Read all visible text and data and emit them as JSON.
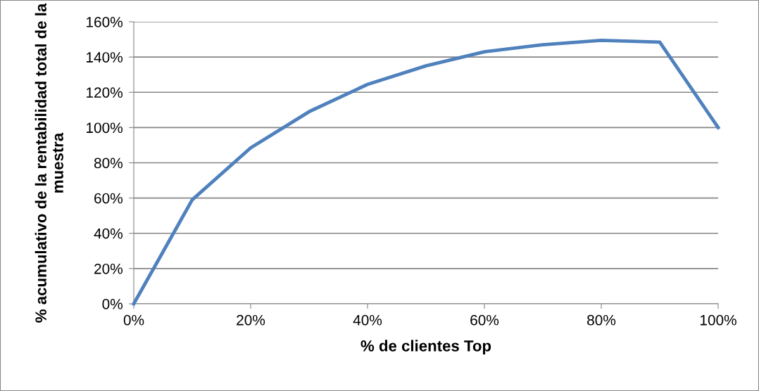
{
  "chart_data": {
    "type": "line",
    "xlabel": "% de clientes Top",
    "ylabel": "% acumulativo de la rentabilidad total de la muestra",
    "x": [
      0,
      10,
      20,
      30,
      40,
      50,
      60,
      70,
      80,
      90,
      100
    ],
    "series": [
      {
        "color": "#4f81bd",
        "values": [
          0,
          59,
          88.5,
          109,
          124.5,
          135,
          143,
          147,
          149.5,
          148.5,
          100
        ]
      }
    ],
    "xlim": [
      0,
      100
    ],
    "xticks": [
      {
        "value": 0,
        "label": "0%"
      },
      {
        "value": 20,
        "label": "20%"
      },
      {
        "value": 40,
        "label": "40%"
      },
      {
        "value": 60,
        "label": "60%"
      },
      {
        "value": 80,
        "label": "80%"
      },
      {
        "value": 100,
        "label": "100%"
      }
    ],
    "ylim": [
      0,
      160
    ],
    "yticks": [
      {
        "value": 0,
        "label": "0%"
      },
      {
        "value": 20,
        "label": "20%"
      },
      {
        "value": 40,
        "label": "40%"
      },
      {
        "value": 60,
        "label": "60%"
      },
      {
        "value": 80,
        "label": "80%"
      },
      {
        "value": 100,
        "label": "100%"
      },
      {
        "value": 120,
        "label": "120%"
      },
      {
        "value": 140,
        "label": "140%"
      },
      {
        "value": 160,
        "label": "160%"
      }
    ],
    "grid": "y",
    "marker": "none",
    "line_style": "solid"
  }
}
